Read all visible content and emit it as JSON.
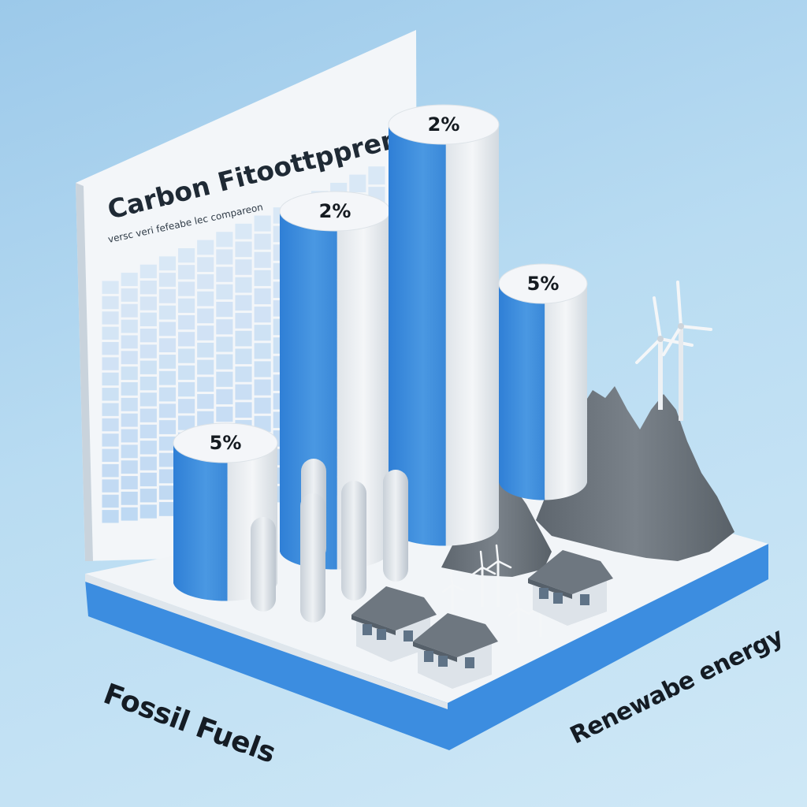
{
  "chart_data": {
    "type": "bar",
    "title": "Carbon Fitoottpprent",
    "subtitle": "versc veri fefeabe lec compareon",
    "categories": [
      "",
      "",
      "",
      ""
    ],
    "values": [
      5,
      2,
      2,
      5
    ],
    "data_labels": [
      "5%",
      "2%",
      "2%",
      "5%"
    ],
    "grid": true,
    "category_group_labels": [
      "Fossil Fuels",
      "Renewabe energy"
    ]
  },
  "colors": {
    "bar_blue": "#3f8fdb",
    "bar_white": "#eef1f4",
    "background": "#b9dcf2",
    "platform_side": "#3c8de0",
    "mountain": "#6c747c",
    "grid_cell": "#aacdf0"
  },
  "icons": [
    "wind-turbine-icon",
    "house-icon",
    "mountain-icon"
  ]
}
